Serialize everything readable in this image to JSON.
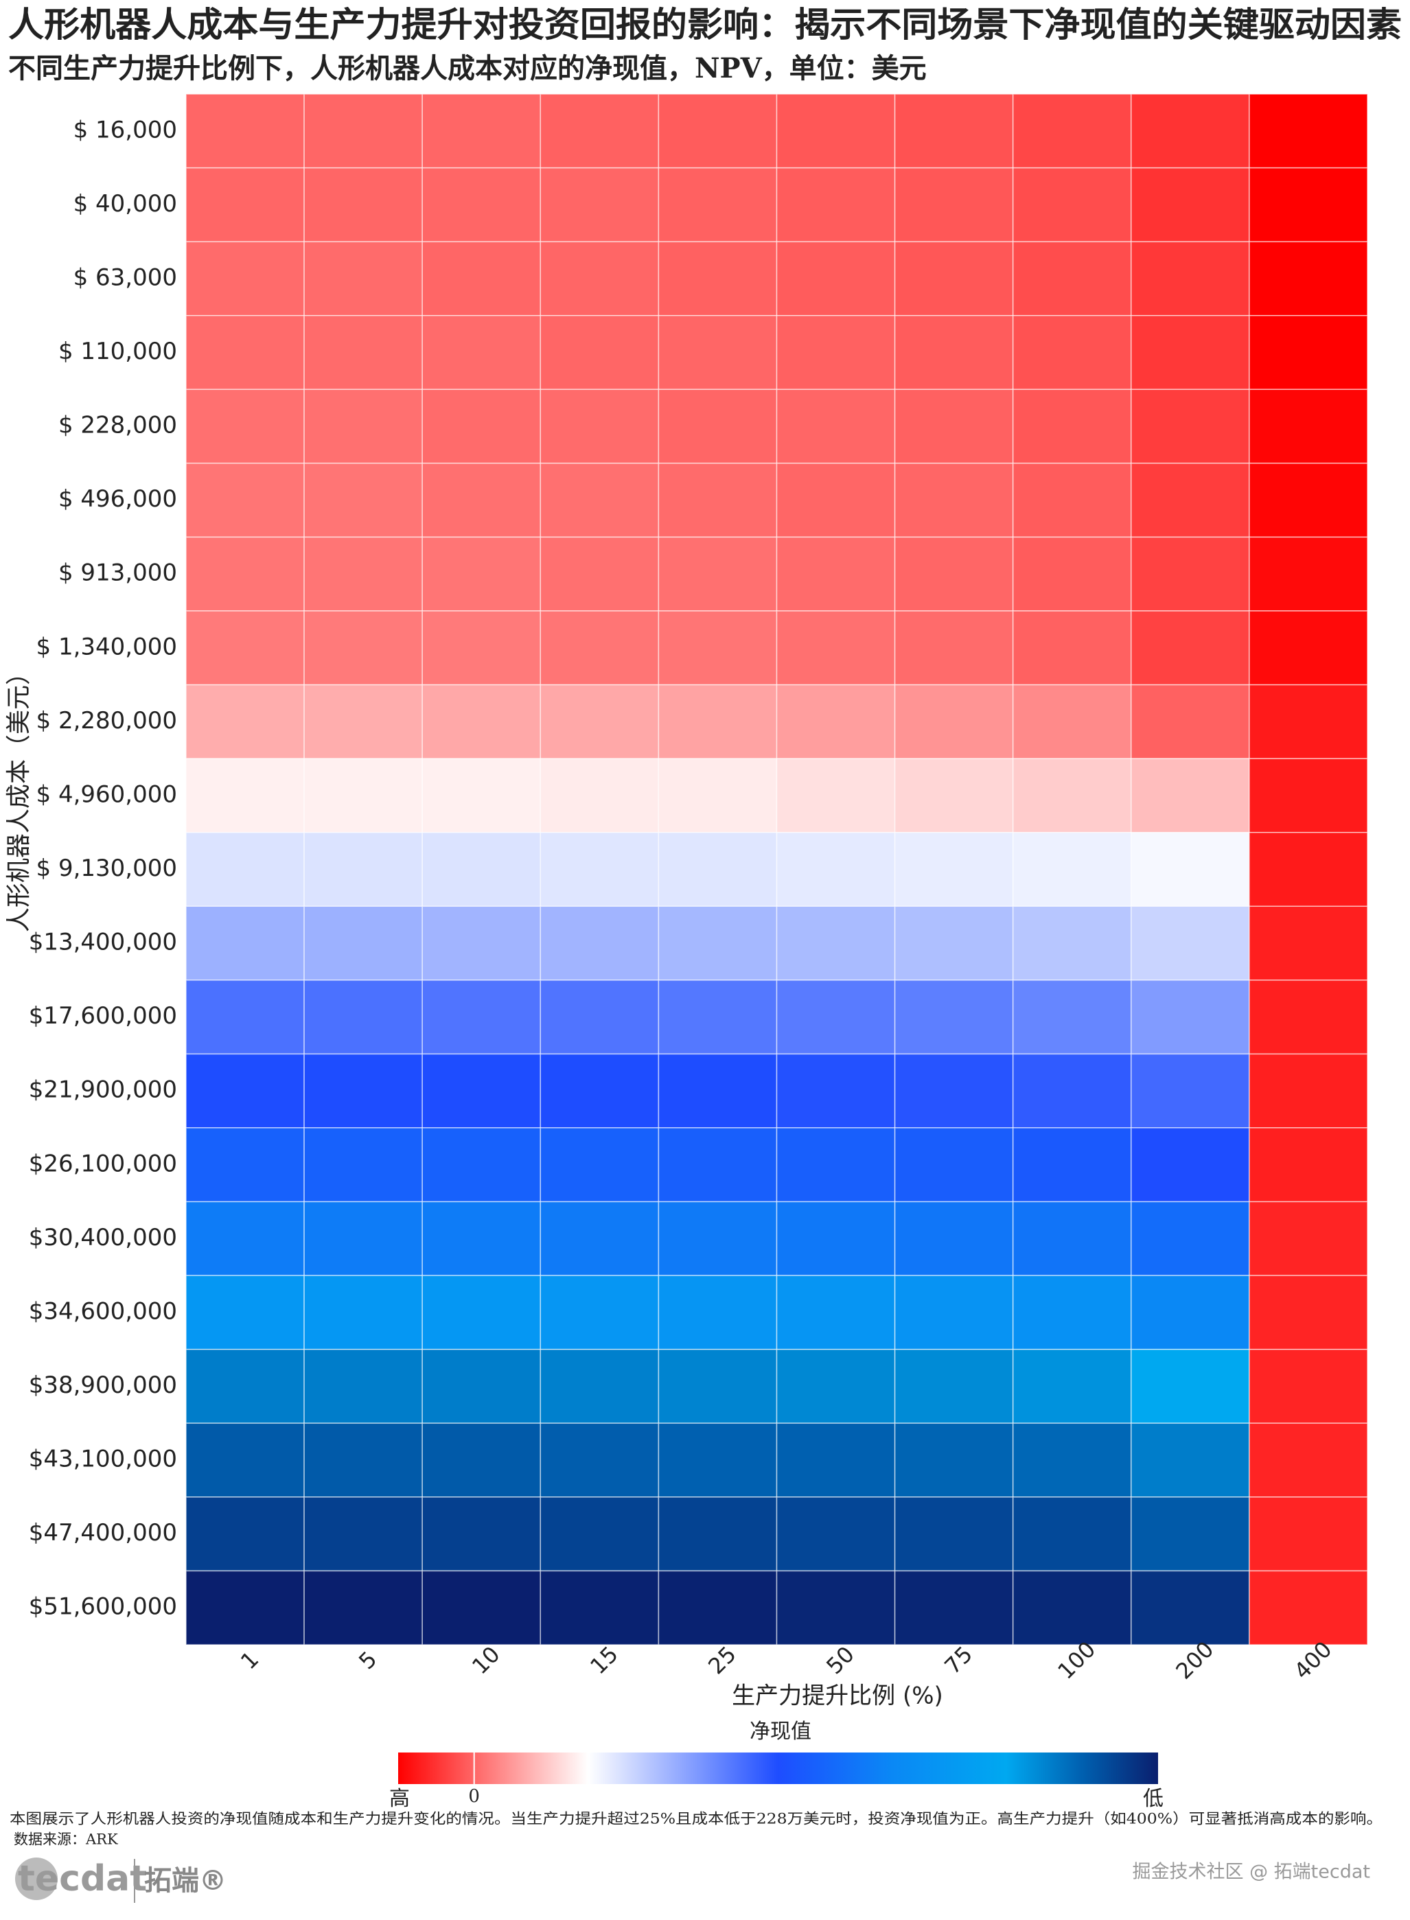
{
  "chart_data": {
    "type": "heatmap",
    "title": "人形机器人成本与生产力提升对投资回报的影响：揭示不同场景下净现值的关键驱动因素",
    "subtitle": "不同生产力提升比例下，人形机器人成本对应的净现值，NPV，单位：美元",
    "xlabel": "生产力提升比例 (%)",
    "ylabel": "人形机器人成本（美元）",
    "x_categories": [
      "1",
      "5",
      "10",
      "15",
      "25",
      "50",
      "75",
      "100",
      "200",
      "400"
    ],
    "y_categories": [
      "$ 16,000",
      "$ 40,000",
      "$ 63,000",
      "$ 110,000",
      "$ 228,000",
      "$ 496,000",
      "$ 913,000",
      "$ 1,340,000",
      "$ 2,280,000",
      "$ 4,960,000",
      "$ 9,130,000",
      "$13,400,000",
      "$17,600,000",
      "$21,900,000",
      "$26,100,000",
      "$30,400,000",
      "$34,600,000",
      "$38,900,000",
      "$43,100,000",
      "$47,400,000",
      "$51,600,000"
    ],
    "values": [
      [
        0,
        0,
        0,
        0.05,
        0.1,
        0.15,
        0.2,
        0.3,
        0.5,
        1
      ],
      [
        0,
        0,
        0,
        0,
        0.05,
        0.1,
        0.15,
        0.25,
        0.5,
        1
      ],
      [
        -0.05,
        -0.05,
        0,
        0,
        0.05,
        0.1,
        0.15,
        0.25,
        0.45,
        1
      ],
      [
        -0.05,
        -0.05,
        -0.05,
        0,
        0,
        0.05,
        0.1,
        0.2,
        0.45,
        1
      ],
      [
        -0.1,
        -0.1,
        -0.05,
        -0.05,
        0,
        0,
        0.05,
        0.15,
        0.4,
        0.95
      ],
      [
        -0.15,
        -0.15,
        -0.1,
        -0.1,
        -0.05,
        0,
        0,
        0.1,
        0.4,
        0.95
      ],
      [
        -0.15,
        -0.15,
        -0.15,
        -0.1,
        -0.1,
        -0.05,
        0,
        0.1,
        0.35,
        0.9
      ],
      [
        -0.2,
        -0.2,
        -0.2,
        -0.15,
        -0.15,
        -0.1,
        -0.05,
        0.05,
        0.35,
        0.9
      ],
      [
        -0.7,
        -0.7,
        -0.65,
        -0.65,
        -0.6,
        -0.55,
        -0.45,
        -0.35,
        0.05,
        0.75
      ],
      [
        -1.35,
        -1.35,
        -1.35,
        -1.3,
        -1.3,
        -1.2,
        -1.1,
        -1,
        -0.85,
        0.75
      ],
      [
        -1.9,
        -1.9,
        -1.9,
        -1.85,
        -1.85,
        -1.8,
        -1.75,
        -1.7,
        -1.6,
        0.75
      ],
      [
        -2.6,
        -2.6,
        -2.55,
        -2.55,
        -2.5,
        -2.45,
        -2.4,
        -2.3,
        -2.1,
        0.7
      ],
      [
        -3.5,
        -3.5,
        -3.45,
        -3.45,
        -3.4,
        -3.35,
        -3.3,
        -3.2,
        -2.9,
        0.7
      ],
      [
        -4,
        -4,
        -4,
        -4,
        -4,
        -3.95,
        -3.9,
        -3.8,
        -3.6,
        0.7
      ],
      [
        -4.5,
        -4.5,
        -4.5,
        -4.5,
        -4.45,
        -4.45,
        -4.4,
        -4.3,
        -4,
        0.7
      ],
      [
        -5.2,
        -5.2,
        -5.2,
        -5.15,
        -5.15,
        -5.1,
        -5.05,
        -5,
        -4.8,
        0.65
      ],
      [
        -6.2,
        -6.2,
        -6.2,
        -6.15,
        -6.1,
        -6.1,
        -6,
        -5.9,
        -5.5,
        0.65
      ],
      [
        -7.6,
        -7.6,
        -7.6,
        -7.55,
        -7.5,
        -7.45,
        -7.4,
        -7.3,
        -7,
        0.65
      ],
      [
        -8.1,
        -8.1,
        -8.1,
        -8.05,
        -8,
        -8,
        -7.95,
        -7.9,
        -7.6,
        0.65
      ],
      [
        -8.5,
        -8.5,
        -8.5,
        -8.45,
        -8.45,
        -8.4,
        -8.4,
        -8.35,
        -8.1,
        0.65
      ],
      [
        -9,
        -9,
        -9,
        -8.95,
        -8.95,
        -8.9,
        -8.9,
        -8.85,
        -8.7,
        0.65
      ]
    ],
    "colorbar": {
      "title": "净现值",
      "lim": [
        1,
        -9
      ],
      "ticks": [
        {
          "value": 0,
          "label": "0"
        }
      ],
      "high_label": "高",
      "low_label": "低",
      "colorscale": [
        [
          0,
          "#ff0000"
        ],
        [
          0.25,
          "#ffffff"
        ],
        [
          0.5,
          "#1e4dff"
        ],
        [
          0.65,
          "#0a88f5"
        ],
        [
          0.8,
          "#00a8f0"
        ],
        [
          0.9,
          "#0060b0"
        ],
        [
          1,
          "#0a1f6e"
        ]
      ]
    }
  },
  "footer": {
    "note": "本图展示了人形机器人投资的净现值随成本和生产力提升变化的情况。当生产力提升超过25%且成本低于228万美元时，投资净现值为正。高生产力提升（如400%）可显著抵消高成本的影响。",
    "source": "数据来源：ARK",
    "logo": "tecdat",
    "brand": "拓端®",
    "watermark": "掘金技术社区 @ 拓端tecdat"
  }
}
